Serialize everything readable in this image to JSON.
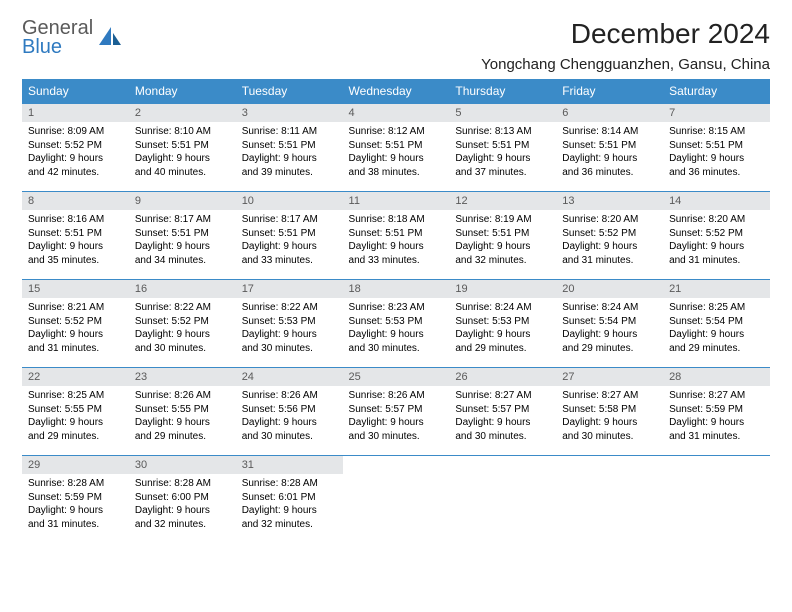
{
  "logo": {
    "general": "General",
    "blue": "Blue"
  },
  "title": "December 2024",
  "location": "Yongchang Chengguanzhen, Gansu, China",
  "colors": {
    "header_bg": "#3b8bc8",
    "header_text": "#ffffff",
    "daynum_bg": "#e4e6e8",
    "daynum_text": "#5a5a5a",
    "border": "#3b8bc8",
    "logo_blue": "#2f7ac0",
    "logo_gray": "#5a5a5a"
  },
  "day_names": [
    "Sunday",
    "Monday",
    "Tuesday",
    "Wednesday",
    "Thursday",
    "Friday",
    "Saturday"
  ],
  "weeks": [
    [
      {
        "n": "1",
        "sr": "Sunrise: 8:09 AM",
        "ss": "Sunset: 5:52 PM",
        "d1": "Daylight: 9 hours",
        "d2": "and 42 minutes."
      },
      {
        "n": "2",
        "sr": "Sunrise: 8:10 AM",
        "ss": "Sunset: 5:51 PM",
        "d1": "Daylight: 9 hours",
        "d2": "and 40 minutes."
      },
      {
        "n": "3",
        "sr": "Sunrise: 8:11 AM",
        "ss": "Sunset: 5:51 PM",
        "d1": "Daylight: 9 hours",
        "d2": "and 39 minutes."
      },
      {
        "n": "4",
        "sr": "Sunrise: 8:12 AM",
        "ss": "Sunset: 5:51 PM",
        "d1": "Daylight: 9 hours",
        "d2": "and 38 minutes."
      },
      {
        "n": "5",
        "sr": "Sunrise: 8:13 AM",
        "ss": "Sunset: 5:51 PM",
        "d1": "Daylight: 9 hours",
        "d2": "and 37 minutes."
      },
      {
        "n": "6",
        "sr": "Sunrise: 8:14 AM",
        "ss": "Sunset: 5:51 PM",
        "d1": "Daylight: 9 hours",
        "d2": "and 36 minutes."
      },
      {
        "n": "7",
        "sr": "Sunrise: 8:15 AM",
        "ss": "Sunset: 5:51 PM",
        "d1": "Daylight: 9 hours",
        "d2": "and 36 minutes."
      }
    ],
    [
      {
        "n": "8",
        "sr": "Sunrise: 8:16 AM",
        "ss": "Sunset: 5:51 PM",
        "d1": "Daylight: 9 hours",
        "d2": "and 35 minutes."
      },
      {
        "n": "9",
        "sr": "Sunrise: 8:17 AM",
        "ss": "Sunset: 5:51 PM",
        "d1": "Daylight: 9 hours",
        "d2": "and 34 minutes."
      },
      {
        "n": "10",
        "sr": "Sunrise: 8:17 AM",
        "ss": "Sunset: 5:51 PM",
        "d1": "Daylight: 9 hours",
        "d2": "and 33 minutes."
      },
      {
        "n": "11",
        "sr": "Sunrise: 8:18 AM",
        "ss": "Sunset: 5:51 PM",
        "d1": "Daylight: 9 hours",
        "d2": "and 33 minutes."
      },
      {
        "n": "12",
        "sr": "Sunrise: 8:19 AM",
        "ss": "Sunset: 5:51 PM",
        "d1": "Daylight: 9 hours",
        "d2": "and 32 minutes."
      },
      {
        "n": "13",
        "sr": "Sunrise: 8:20 AM",
        "ss": "Sunset: 5:52 PM",
        "d1": "Daylight: 9 hours",
        "d2": "and 31 minutes."
      },
      {
        "n": "14",
        "sr": "Sunrise: 8:20 AM",
        "ss": "Sunset: 5:52 PM",
        "d1": "Daylight: 9 hours",
        "d2": "and 31 minutes."
      }
    ],
    [
      {
        "n": "15",
        "sr": "Sunrise: 8:21 AM",
        "ss": "Sunset: 5:52 PM",
        "d1": "Daylight: 9 hours",
        "d2": "and 31 minutes."
      },
      {
        "n": "16",
        "sr": "Sunrise: 8:22 AM",
        "ss": "Sunset: 5:52 PM",
        "d1": "Daylight: 9 hours",
        "d2": "and 30 minutes."
      },
      {
        "n": "17",
        "sr": "Sunrise: 8:22 AM",
        "ss": "Sunset: 5:53 PM",
        "d1": "Daylight: 9 hours",
        "d2": "and 30 minutes."
      },
      {
        "n": "18",
        "sr": "Sunrise: 8:23 AM",
        "ss": "Sunset: 5:53 PM",
        "d1": "Daylight: 9 hours",
        "d2": "and 30 minutes."
      },
      {
        "n": "19",
        "sr": "Sunrise: 8:24 AM",
        "ss": "Sunset: 5:53 PM",
        "d1": "Daylight: 9 hours",
        "d2": "and 29 minutes."
      },
      {
        "n": "20",
        "sr": "Sunrise: 8:24 AM",
        "ss": "Sunset: 5:54 PM",
        "d1": "Daylight: 9 hours",
        "d2": "and 29 minutes."
      },
      {
        "n": "21",
        "sr": "Sunrise: 8:25 AM",
        "ss": "Sunset: 5:54 PM",
        "d1": "Daylight: 9 hours",
        "d2": "and 29 minutes."
      }
    ],
    [
      {
        "n": "22",
        "sr": "Sunrise: 8:25 AM",
        "ss": "Sunset: 5:55 PM",
        "d1": "Daylight: 9 hours",
        "d2": "and 29 minutes."
      },
      {
        "n": "23",
        "sr": "Sunrise: 8:26 AM",
        "ss": "Sunset: 5:55 PM",
        "d1": "Daylight: 9 hours",
        "d2": "and 29 minutes."
      },
      {
        "n": "24",
        "sr": "Sunrise: 8:26 AM",
        "ss": "Sunset: 5:56 PM",
        "d1": "Daylight: 9 hours",
        "d2": "and 30 minutes."
      },
      {
        "n": "25",
        "sr": "Sunrise: 8:26 AM",
        "ss": "Sunset: 5:57 PM",
        "d1": "Daylight: 9 hours",
        "d2": "and 30 minutes."
      },
      {
        "n": "26",
        "sr": "Sunrise: 8:27 AM",
        "ss": "Sunset: 5:57 PM",
        "d1": "Daylight: 9 hours",
        "d2": "and 30 minutes."
      },
      {
        "n": "27",
        "sr": "Sunrise: 8:27 AM",
        "ss": "Sunset: 5:58 PM",
        "d1": "Daylight: 9 hours",
        "d2": "and 30 minutes."
      },
      {
        "n": "28",
        "sr": "Sunrise: 8:27 AM",
        "ss": "Sunset: 5:59 PM",
        "d1": "Daylight: 9 hours",
        "d2": "and 31 minutes."
      }
    ],
    [
      {
        "n": "29",
        "sr": "Sunrise: 8:28 AM",
        "ss": "Sunset: 5:59 PM",
        "d1": "Daylight: 9 hours",
        "d2": "and 31 minutes."
      },
      {
        "n": "30",
        "sr": "Sunrise: 8:28 AM",
        "ss": "Sunset: 6:00 PM",
        "d1": "Daylight: 9 hours",
        "d2": "and 32 minutes."
      },
      {
        "n": "31",
        "sr": "Sunrise: 8:28 AM",
        "ss": "Sunset: 6:01 PM",
        "d1": "Daylight: 9 hours",
        "d2": "and 32 minutes."
      },
      null,
      null,
      null,
      null
    ]
  ]
}
